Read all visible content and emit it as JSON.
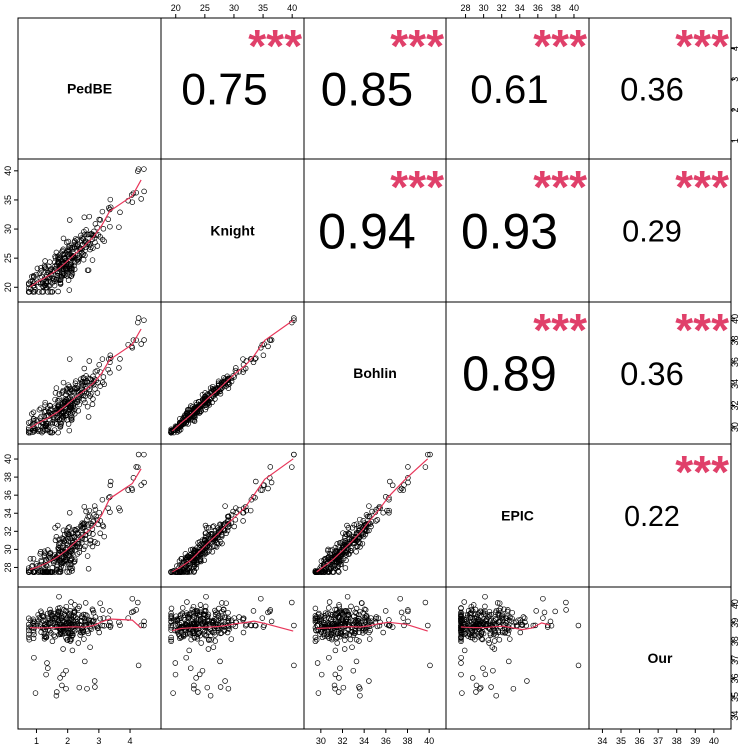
{
  "chart_data": {
    "type": "scatter-matrix",
    "title": "",
    "variables": [
      {
        "name": "PedBE",
        "range": [
          0.6,
          4.8
        ],
        "ticks": [
          1,
          2,
          3,
          4
        ]
      },
      {
        "name": "Knight",
        "range": [
          18.5,
          41
        ],
        "ticks": [
          20,
          25,
          30,
          35,
          40
        ]
      },
      {
        "name": "Bohlin",
        "range": [
          29,
          41
        ],
        "ticks": [
          30,
          32,
          34,
          36,
          38,
          40
        ]
      },
      {
        "name": "EPIC",
        "range": [
          26.5,
          41
        ],
        "ticks": [
          28,
          30,
          32,
          34,
          36,
          38,
          40
        ]
      },
      {
        "name": "Our",
        "range": [
          33.6,
          40.6
        ],
        "ticks": [
          34,
          35,
          36,
          37,
          38,
          39,
          40
        ]
      }
    ],
    "correlations": [
      {
        "row": 0,
        "col": 1,
        "value": "0.75",
        "stars": "***"
      },
      {
        "row": 0,
        "col": 2,
        "value": "0.85",
        "stars": "***"
      },
      {
        "row": 0,
        "col": 3,
        "value": "0.61",
        "stars": "***"
      },
      {
        "row": 0,
        "col": 4,
        "value": "0.36",
        "stars": "***"
      },
      {
        "row": 1,
        "col": 2,
        "value": "0.94",
        "stars": "***"
      },
      {
        "row": 1,
        "col": 3,
        "value": "0.93",
        "stars": "***"
      },
      {
        "row": 1,
        "col": 4,
        "value": "0.29",
        "stars": "***"
      },
      {
        "row": 2,
        "col": 3,
        "value": "0.89",
        "stars": "***"
      },
      {
        "row": 2,
        "col": 4,
        "value": "0.36",
        "stars": "***"
      },
      {
        "row": 3,
        "col": 4,
        "value": "0.22",
        "stars": "***"
      }
    ],
    "colors": {
      "points": "#000000",
      "smoother": "#e8365a",
      "stars": "#e0406a"
    }
  }
}
